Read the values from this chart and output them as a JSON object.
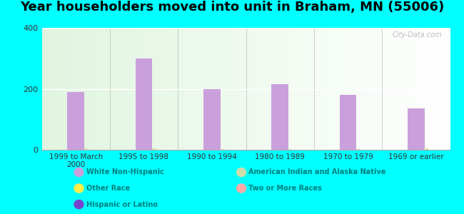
{
  "title": "Year householders moved into unit in Braham, MN (55006)",
  "categories": [
    "1999 to March\n2000",
    "1995 to 1998",
    "1990 to 1994",
    "1980 to 1989",
    "1970 to 1979",
    "1969 or earlier"
  ],
  "white_non_hispanic": [
    190,
    300,
    200,
    215,
    180,
    135
  ],
  "tiny_bar_values": [
    4,
    4,
    3,
    3,
    3,
    4
  ],
  "ylim": [
    0,
    400
  ],
  "yticks": [
    0,
    200,
    400
  ],
  "bg_outer": "#00FFFF",
  "bar_color_white": "#c9a0dc",
  "bar_color_tiny": "#ddddaa",
  "watermark": "City-Data.com",
  "legend_items": [
    {
      "label": "White Non-Hispanic",
      "color": "#c9a0dc"
    },
    {
      "label": "American Indian and Alaska Native",
      "color": "#ccddaa"
    },
    {
      "label": "Other Race",
      "color": "#ffee44"
    },
    {
      "label": "Two or More Races",
      "color": "#ffaaaa"
    },
    {
      "label": "Hispanic or Latino",
      "color": "#7744cc"
    }
  ],
  "title_fontsize": 13,
  "tick_label_color": "#333333",
  "legend_text_color": "#008080"
}
